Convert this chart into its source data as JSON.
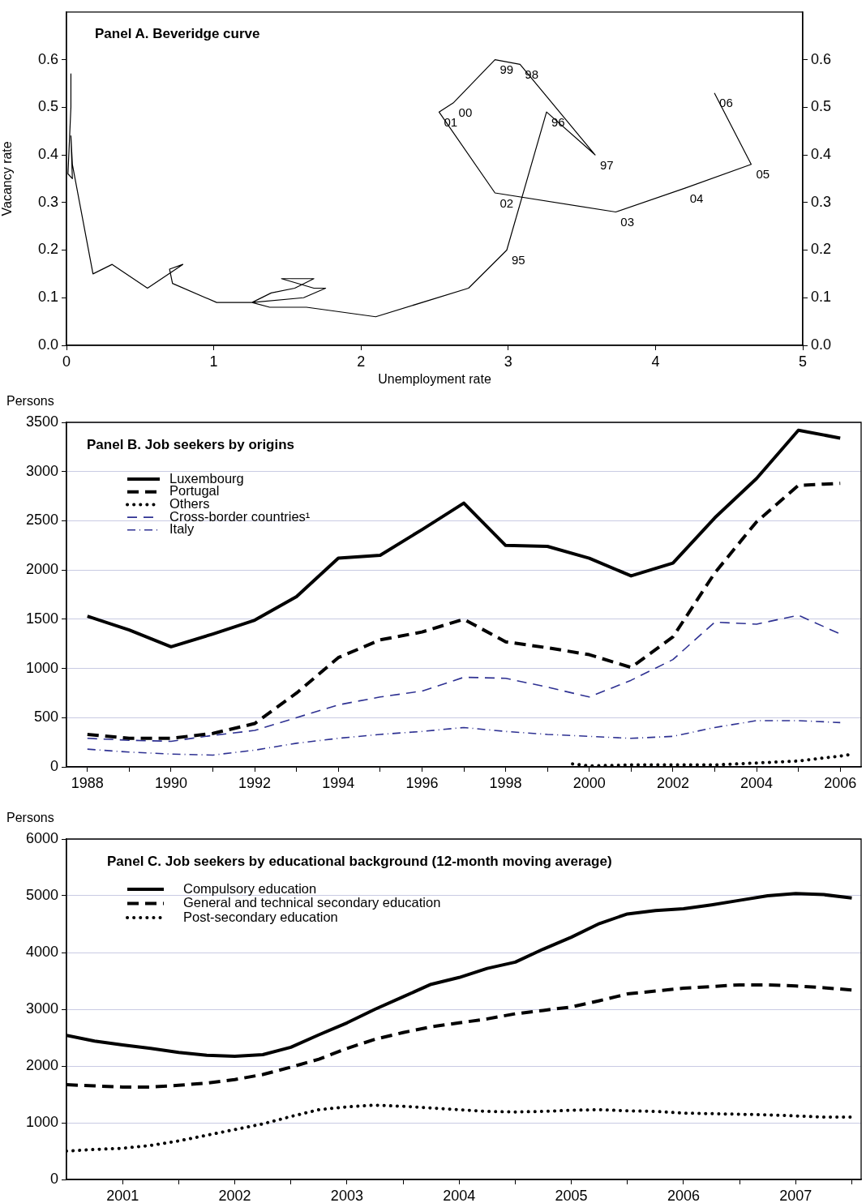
{
  "chart_data": [
    {
      "type": "line",
      "title": "Panel A. Beveridge curve",
      "xlabel": "Unemployment rate",
      "ylabel": "Vacancy rate",
      "x": [
        0.03,
        0.03,
        0.01,
        0.04,
        0.03,
        0.04,
        0.18,
        0.31,
        0.55,
        0.79,
        0.7,
        0.72,
        1.02,
        1.26,
        1.39,
        1.55,
        1.68,
        1.46,
        1.68,
        1.76,
        1.61,
        1.26,
        1.38,
        1.63,
        2.1,
        2.73,
        2.99,
        3.26,
        3.59,
        3.08,
        2.91,
        2.63,
        2.53,
        2.91,
        3.73,
        4.2,
        4.65,
        4.4
      ],
      "series": [
        {
          "color": "#000000",
          "line_style": "solid",
          "values": [
            0.57,
            0.5,
            0.36,
            0.35,
            0.44,
            0.38,
            0.15,
            0.17,
            0.12,
            0.17,
            0.16,
            0.13,
            0.09,
            0.09,
            0.11,
            0.12,
            0.14,
            0.14,
            0.12,
            0.12,
            0.1,
            0.09,
            0.08,
            0.08,
            0.06,
            0.12,
            0.2,
            0.49,
            0.4,
            0.59,
            0.6,
            0.51,
            0.49,
            0.32,
            0.28,
            0.33,
            0.38,
            0.53
          ]
        }
      ],
      "xlim": [
        0,
        5
      ],
      "xticks": [
        0,
        1,
        2,
        3,
        4,
        5
      ],
      "ylim": [
        0,
        0.7
      ],
      "yticks": [
        {
          "value": 0,
          "label": "0.0"
        },
        0.1,
        0.2,
        0.3,
        0.4,
        0.5,
        0.6
      ],
      "y2lim": [
        0,
        0.7
      ],
      "y2ticks": [
        {
          "value": 0,
          "label": "0.0"
        },
        0.1,
        0.2,
        0.3,
        0.4,
        0.5,
        0.6
      ],
      "annotations": [
        {
          "text": "95",
          "x": 2.99,
          "y": 0.2
        },
        {
          "text": "96",
          "x": 3.26,
          "y": 0.49
        },
        {
          "text": "97",
          "x": 3.59,
          "y": 0.4
        },
        {
          "text": "98",
          "x": 3.08,
          "y": 0.59
        },
        {
          "text": "99",
          "x": 2.91,
          "y": 0.6
        },
        {
          "text": "00",
          "x": 2.63,
          "y": 0.51
        },
        {
          "text": "01",
          "x": 2.53,
          "y": 0.49
        },
        {
          "text": "02",
          "x": 2.91,
          "y": 0.32
        },
        {
          "text": "03",
          "x": 3.73,
          "y": 0.28
        },
        {
          "text": "04",
          "x": 4.2,
          "y": 0.33
        },
        {
          "text": "05",
          "x": 4.65,
          "y": 0.38
        },
        {
          "text": "06",
          "x": 4.4,
          "y": 0.53
        }
      ],
      "grid": false,
      "legend": false
    },
    {
      "type": "line",
      "title": "Panel B. Job seekers by origins",
      "ylabel": "Persons",
      "x": [
        1988,
        1989,
        1990,
        1991,
        1992,
        1993,
        1994,
        1995,
        1996,
        1997,
        1998,
        1999,
        2000,
        2001,
        2002,
        2003,
        2004,
        2005,
        2006
      ],
      "series": [
        {
          "name": "Luxembourg",
          "color": "#000000",
          "line_style": "solid",
          "values": [
            1530,
            1390,
            1220,
            1350,
            1490,
            1730,
            2120,
            2150,
            2410,
            2680,
            2250,
            2240,
            2120,
            1940,
            2070,
            2530,
            2930,
            3420,
            3340
          ]
        },
        {
          "name": "Portugal",
          "color": "#000000",
          "line_style": "dashed",
          "values": [
            330,
            290,
            290,
            340,
            440,
            750,
            1110,
            1290,
            1370,
            1500,
            1270,
            1210,
            1140,
            1010,
            1320,
            1970,
            2490,
            2860,
            2880
          ]
        },
        {
          "name": "Others",
          "color": "#000000",
          "line_style": "dotted",
          "x": [
            1999.6,
            2000,
            2001,
            2002,
            2003,
            2004,
            2005,
            2006,
            2006.3
          ],
          "values": [
            30,
            10,
            20,
            20,
            20,
            40,
            60,
            110,
            130
          ]
        },
        {
          "name": "Cross-border countries¹",
          "color": "#2e3192",
          "line_style": "dashed",
          "values": [
            290,
            270,
            260,
            320,
            370,
            500,
            630,
            710,
            770,
            910,
            900,
            810,
            710,
            880,
            1090,
            1470,
            1450,
            1540,
            1350
          ]
        },
        {
          "name": "Italy",
          "color": "#2e3192",
          "line_style": "dashdot",
          "values": [
            180,
            150,
            130,
            120,
            170,
            240,
            290,
            330,
            360,
            400,
            360,
            330,
            310,
            290,
            310,
            400,
            470,
            470,
            450
          ]
        }
      ],
      "xlim": [
        1987.5,
        2006.5
      ],
      "xticks": [
        1988,
        {
          "value": 1989,
          "label": null
        },
        1990,
        {
          "value": 1991,
          "label": null
        },
        1992,
        {
          "value": 1993,
          "label": null
        },
        1994,
        {
          "value": 1995,
          "label": null
        },
        1996,
        {
          "value": 1997,
          "label": null
        },
        1998,
        {
          "value": 1999,
          "label": null
        },
        2000,
        {
          "value": 2001,
          "label": null
        },
        2002,
        {
          "value": 2003,
          "label": null
        },
        2004,
        {
          "value": 2005,
          "label": null
        },
        2006
      ],
      "ylim": [
        0,
        3500
      ],
      "yticks": [
        0,
        500,
        1000,
        1500,
        2000,
        2500,
        3000,
        3500
      ],
      "grid": "y",
      "legend": "top left"
    },
    {
      "type": "line",
      "title": "Panel C. Job seekers by educational background (12-month moving average)",
      "ylabel": "Persons",
      "x": [
        "2001-01",
        "2001-04",
        "2001-07",
        "2001-10",
        "2002-01",
        "2002-04",
        "2002-07",
        "2002-10",
        "2003-01",
        "2003-04",
        "2003-07",
        "2003-10",
        "2004-01",
        "2004-04",
        "2004-07",
        "2004-10",
        "2005-01",
        "2005-04",
        "2005-07",
        "2005-10",
        "2006-01",
        "2006-04",
        "2006-07",
        "2006-10",
        "2007-01",
        "2007-04",
        "2007-07",
        "2007-10",
        "2008-01"
      ],
      "series": [
        {
          "name": "Compulsory education",
          "color": "#000000",
          "line_style": "solid",
          "values": [
            2540,
            2440,
            2370,
            2310,
            2240,
            2190,
            2170,
            2200,
            2330,
            2550,
            2760,
            3000,
            3220,
            3440,
            3560,
            3720,
            3830,
            4060,
            4270,
            4510,
            4680,
            4740,
            4770,
            4840,
            4920,
            5000,
            5040,
            5020,
            4960
          ]
        },
        {
          "name": "General and technical secondary education",
          "color": "#000000",
          "line_style": "dashed",
          "values": [
            1670,
            1650,
            1630,
            1630,
            1660,
            1700,
            1760,
            1850,
            1980,
            2120,
            2310,
            2470,
            2590,
            2690,
            2760,
            2830,
            2920,
            2980,
            3040,
            3150,
            3270,
            3320,
            3370,
            3400,
            3430,
            3430,
            3410,
            3380,
            3340
          ]
        },
        {
          "name": "Post-secondary education",
          "color": "#000000",
          "line_style": "dotted",
          "values": [
            500,
            530,
            550,
            600,
            680,
            780,
            880,
            980,
            1110,
            1230,
            1280,
            1310,
            1290,
            1260,
            1230,
            1200,
            1190,
            1200,
            1220,
            1230,
            1210,
            1200,
            1170,
            1160,
            1150,
            1140,
            1120,
            1100,
            1100
          ]
        }
      ],
      "xlim": [
        "2001-01",
        "2008-02"
      ],
      "xticks": [
        {
          "value": "2001-07",
          "label": "2001"
        },
        {
          "value": "2002-01",
          "label": null
        },
        {
          "value": "2002-07",
          "label": "2002"
        },
        {
          "value": "2003-01",
          "label": null
        },
        {
          "value": "2003-07",
          "label": "2003"
        },
        {
          "value": "2004-01",
          "label": null
        },
        {
          "value": "2004-07",
          "label": "2004"
        },
        {
          "value": "2005-01",
          "label": null
        },
        {
          "value": "2005-07",
          "label": "2005"
        },
        {
          "value": "2006-01",
          "label": null
        },
        {
          "value": "2006-07",
          "label": "2006"
        },
        {
          "value": "2007-01",
          "label": null
        },
        {
          "value": "2007-07",
          "label": "2007"
        },
        {
          "value": "2008-01",
          "label": null
        }
      ],
      "ylim": [
        0,
        6000
      ],
      "yticks": [
        0,
        1000,
        2000,
        3000,
        4000,
        5000,
        6000
      ],
      "grid": "y",
      "legend": "top left"
    }
  ]
}
